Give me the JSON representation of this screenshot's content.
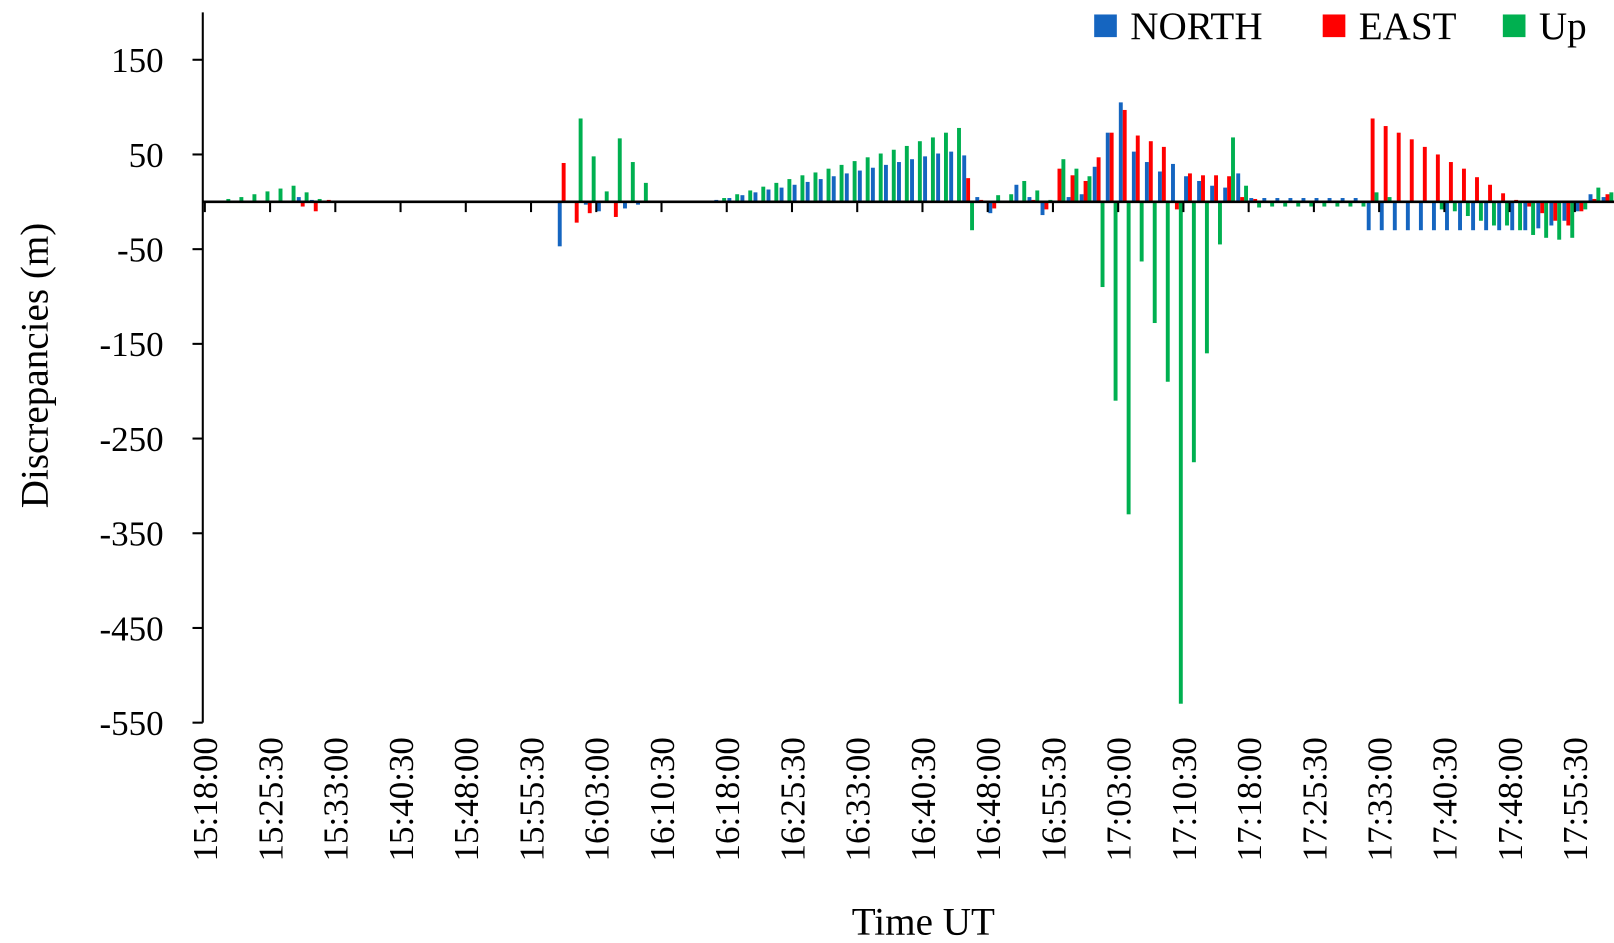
{
  "chart_data": {
    "type": "bar",
    "x_label": "Time UT",
    "y_label": "Discrepancies (m)",
    "categories": [
      "15:18:00",
      null,
      null,
      null,
      null,
      "15:25:30",
      null,
      null,
      null,
      null,
      "15:33:00",
      null,
      null,
      null,
      null,
      "15:40:30",
      null,
      null,
      null,
      null,
      "15:48:00",
      null,
      null,
      null,
      null,
      "15:55:30",
      null,
      null,
      null,
      null,
      "16:03:00",
      null,
      null,
      null,
      null,
      "16:10:30",
      null,
      null,
      null,
      null,
      "16:18:00",
      null,
      null,
      null,
      null,
      "16:25:30",
      null,
      null,
      null,
      null,
      "16:33:00",
      null,
      null,
      null,
      null,
      "16:40:30",
      null,
      null,
      null,
      null,
      "16:48:00",
      null,
      null,
      null,
      null,
      "16:55:30",
      null,
      null,
      null,
      null,
      "17:03:00",
      null,
      null,
      null,
      null,
      "17:10:30",
      null,
      null,
      null,
      null,
      "17:18:00",
      null,
      null,
      null,
      null,
      "17:25:30",
      null,
      null,
      null,
      null,
      "17:33:00",
      null,
      null,
      null,
      null,
      "17:40:30",
      null,
      null,
      null,
      null,
      "17:48:00",
      null,
      null,
      null,
      null,
      "17:55:30",
      null,
      null
    ],
    "series": [
      {
        "name": "NORTH",
        "color": "#1565c0",
        "values": [
          0,
          0,
          0,
          0,
          0,
          0,
          0,
          5,
          2,
          0,
          0,
          0,
          0,
          0,
          0,
          0,
          0,
          0,
          0,
          0,
          0,
          0,
          0,
          0,
          0,
          0,
          0,
          -47,
          0,
          -3,
          -10,
          0,
          -7,
          -3,
          0,
          0,
          0,
          0,
          0,
          2,
          4,
          7,
          10,
          13,
          15,
          18,
          21,
          24,
          27,
          30,
          33,
          36,
          39,
          42,
          45,
          48,
          51,
          53,
          49,
          5,
          -12,
          0,
          18,
          5,
          -14,
          0,
          5,
          8,
          37,
          73,
          105,
          53,
          42,
          32,
          40,
          27,
          22,
          17,
          15,
          30,
          4,
          4,
          4,
          4,
          4,
          4,
          4,
          4,
          4,
          -30,
          -30,
          -30,
          -30,
          -30,
          -30,
          -30,
          -30,
          -30,
          -30,
          -30,
          -30,
          -30,
          -28,
          -25,
          -20,
          -10,
          8,
          5
        ]
      },
      {
        "name": "EAST",
        "color": "#ff0000",
        "values": [
          0,
          0,
          0,
          0,
          0,
          0,
          0,
          -5,
          -10,
          2,
          0,
          0,
          0,
          0,
          0,
          0,
          0,
          0,
          0,
          0,
          0,
          0,
          0,
          0,
          0,
          0,
          0,
          41,
          -22,
          -12,
          0,
          -16,
          0,
          0,
          0,
          0,
          0,
          0,
          0,
          0,
          0,
          0,
          0,
          0,
          0,
          0,
          0,
          0,
          0,
          0,
          0,
          0,
          0,
          0,
          0,
          0,
          0,
          0,
          25,
          2,
          -7,
          0,
          0,
          2,
          -8,
          35,
          28,
          22,
          47,
          73,
          97,
          70,
          64,
          58,
          -8,
          30,
          28,
          28,
          27,
          5,
          3,
          0,
          0,
          0,
          0,
          0,
          0,
          0,
          0,
          88,
          80,
          73,
          66,
          58,
          50,
          42,
          35,
          26,
          18,
          9,
          2,
          -5,
          -12,
          -20,
          -25,
          -10,
          3,
          8
        ]
      },
      {
        "name": "Up",
        "color": "#00b050",
        "values": [
          1,
          3,
          5,
          8,
          11,
          14,
          17,
          10,
          3,
          1,
          0,
          0,
          0,
          0,
          0,
          0,
          0,
          0,
          0,
          0,
          0,
          0,
          0,
          0,
          0,
          0,
          0,
          0,
          88,
          48,
          11,
          67,
          42,
          20,
          0,
          0,
          0,
          0,
          0,
          4,
          8,
          12,
          16,
          20,
          24,
          28,
          31,
          35,
          39,
          43,
          47,
          51,
          55,
          59,
          64,
          68,
          73,
          78,
          -30,
          0,
          7,
          8,
          22,
          12,
          2,
          45,
          35,
          27,
          -90,
          -210,
          -330,
          -63,
          -128,
          -190,
          -530,
          -275,
          -160,
          -45,
          68,
          17,
          -6,
          -5,
          -5,
          -5,
          -5,
          -5,
          -5,
          -5,
          -5,
          10,
          5,
          0,
          0,
          0,
          -8,
          -10,
          -15,
          -20,
          -25,
          -25,
          -30,
          -35,
          -38,
          -40,
          -38,
          -8,
          15,
          10
        ]
      }
    ],
    "ylim": [
      -550,
      200
    ],
    "yticks": [
      150,
      50,
      -50,
      -150,
      -250,
      -350,
      -450,
      -550
    ],
    "legend": "top-right"
  }
}
